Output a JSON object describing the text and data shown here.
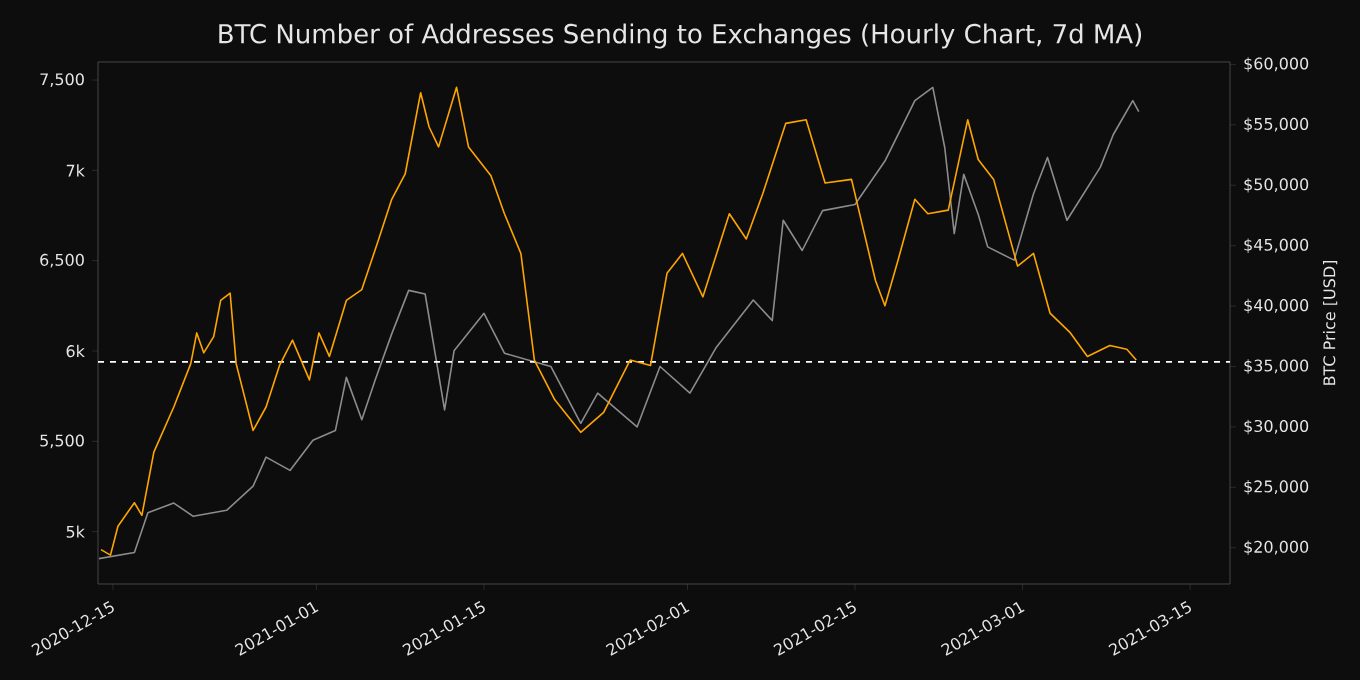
{
  "chart_data": {
    "type": "line",
    "title": "BTC Number of Addresses Sending to Exchanges (Hourly Chart, 7d MA)",
    "y2label": "BTC Price [USD]",
    "xlim": [
      "2020-12-13T18:00",
      "2021-03-18T08:00"
    ],
    "xticks": [
      "2020-12-15",
      "2021-01-01",
      "2021-01-15",
      "2021-02-01",
      "2021-02-15",
      "2021-03-01",
      "2021-03-15"
    ],
    "ylim": [
      4710,
      7600
    ],
    "yticks": [
      {
        "value": 5000,
        "label": "5k"
      },
      {
        "value": 5500,
        "label": "5,500"
      },
      {
        "value": 6000,
        "label": "6k"
      },
      {
        "value": 6500,
        "label": "6,500"
      },
      {
        "value": 7000,
        "label": "7k"
      },
      {
        "value": 7500,
        "label": "7,500"
      }
    ],
    "y2lim": [
      17000,
      60200
    ],
    "y2ticks": [
      {
        "value": 20000,
        "label": "$20,000"
      },
      {
        "value": 25000,
        "label": "$25,000"
      },
      {
        "value": 30000,
        "label": "$30,000"
      },
      {
        "value": 35000,
        "label": "$35,000"
      },
      {
        "value": 40000,
        "label": "$40,000"
      },
      {
        "value": 45000,
        "label": "$45,000"
      },
      {
        "value": 50000,
        "label": "$50,000"
      },
      {
        "value": 55000,
        "label": "$55,000"
      },
      {
        "value": 60000,
        "label": "$60,000"
      }
    ],
    "grid": false,
    "ref_lines": [
      {
        "axis": "y",
        "value": 5940,
        "color": "#ffffff",
        "line_style": "dashed"
      }
    ],
    "series": [
      {
        "color": "#ffa500",
        "x": [
          "2020-12-14T00:00",
          "2020-12-14T19:00",
          "2020-12-15T10:00",
          "2020-12-16T19:00",
          "2020-12-17T10:00",
          "2020-12-18T10:00",
          "2020-12-20T02:00",
          "2020-12-21T12:00",
          "2020-12-22T00:00",
          "2020-12-22T14:00",
          "2020-12-23T10:00",
          "2020-12-24T00:00",
          "2020-12-24T19:00",
          "2020-12-25T07:00",
          "2020-12-26T17:00",
          "2020-12-27T19:00",
          "2020-12-28T22:00",
          "2020-12-30T00:00",
          "2020-12-31T10:00",
          "2021-01-01T05:00",
          "2021-01-02T02:00",
          "2021-01-03T12:00",
          "2021-01-04T19:00",
          "2021-01-06T05:00",
          "2021-01-07T07:00",
          "2021-01-08T10:00",
          "2021-01-09T17:00",
          "2021-01-10T10:00",
          "2021-01-11T05:00",
          "2021-01-12T17:00",
          "2021-01-13T17:00",
          "2021-01-15T14:00",
          "2021-01-16T17:00",
          "2021-01-18T02:00",
          "2021-01-19T05:00",
          "2021-01-20T22:00",
          "2021-01-23T02:00",
          "2021-01-25T00:00",
          "2021-01-27T05:00",
          "2021-01-28T22:00",
          "2021-01-30T07:00",
          "2021-01-31T14:00",
          "2021-02-02T07:00",
          "2021-02-04T12:00",
          "2021-02-05T22:00",
          "2021-02-07T07:00",
          "2021-02-09T05:00",
          "2021-02-10T22:00",
          "2021-02-12T12:00",
          "2021-02-14T17:00",
          "2021-02-16T17:00",
          "2021-02-17T12:00",
          "2021-02-18T14:00",
          "2021-02-20T00:00",
          "2021-02-21T02:00",
          "2021-02-22T19:00",
          "2021-02-24T10:00",
          "2021-02-25T07:00",
          "2021-02-26T14:00",
          "2021-02-28T14:00",
          "2021-03-01T22:00",
          "2021-03-03T07:00",
          "2021-03-05T00:00",
          "2021-03-06T10:00",
          "2021-03-08T07:00",
          "2021-03-09T17:00",
          "2021-03-10T12:00"
        ],
        "values": [
          4900,
          4870,
          5030,
          5160,
          5090,
          5440,
          5690,
          5930,
          6100,
          5990,
          6080,
          6280,
          6320,
          5930,
          5560,
          5690,
          5920,
          6060,
          5840,
          6100,
          5970,
          6280,
          6340,
          6620,
          6840,
          6980,
          7430,
          7240,
          7130,
          7460,
          7130,
          6970,
          6760,
          6540,
          5950,
          5730,
          5550,
          5660,
          5950,
          5920,
          6430,
          6540,
          6300,
          6760,
          6620,
          6870,
          7260,
          7280,
          6930,
          6950,
          6390,
          6250,
          6500,
          6840,
          6760,
          6780,
          7280,
          7060,
          6950,
          6470,
          6540,
          6210,
          6100,
          5970,
          6030,
          6010,
          5950
        ]
      },
      {
        "color": "#8c8c8c",
        "axis": "y2",
        "x": [
          "2020-12-13T20:00",
          "2020-12-16T19:00",
          "2020-12-17T22:00",
          "2020-12-20T02:00",
          "2020-12-21T17:00",
          "2020-12-24T12:00",
          "2020-12-26T17:00",
          "2020-12-27T19:00",
          "2020-12-29T19:00",
          "2020-12-31T17:00",
          "2021-01-02T14:00",
          "2021-01-03T12:00",
          "2021-01-04T19:00",
          "2021-01-05T22:00",
          "2021-01-07T07:00",
          "2021-01-08T17:00",
          "2021-01-10T02:00",
          "2021-01-11T17:00",
          "2021-01-12T12:00",
          "2021-01-15T00:00",
          "2021-01-16T17:00",
          "2021-01-20T14:00",
          "2021-01-23T02:00",
          "2021-01-24T12:00",
          "2021-01-27T19:00",
          "2021-01-29T17:00",
          "2021-02-01T05:00",
          "2021-02-03T10:00",
          "2021-02-06T12:00",
          "2021-02-08T02:00",
          "2021-02-09T00:00",
          "2021-02-10T14:00",
          "2021-02-12T07:00",
          "2021-02-15T00:00",
          "2021-02-17T12:00",
          "2021-02-20T00:00",
          "2021-02-21T12:00",
          "2021-02-22T12:00",
          "2021-02-23T07:00",
          "2021-02-24T02:00",
          "2021-02-25T07:00",
          "2021-02-26T02:00",
          "2021-02-28T07:00",
          "2021-03-01T22:00",
          "2021-03-03T02:00",
          "2021-03-04T17:00",
          "2021-03-07T12:00",
          "2021-03-08T14:00",
          "2021-03-10T05:00",
          "2021-03-10T17:00"
        ],
        "values": [
          19100,
          19600,
          22900,
          23700,
          22600,
          23100,
          25100,
          27500,
          26400,
          28900,
          29700,
          34100,
          30600,
          33900,
          37700,
          41300,
          41000,
          31400,
          36300,
          39400,
          36100,
          35000,
          30300,
          32800,
          30000,
          35000,
          32800,
          36600,
          40500,
          38800,
          47100,
          44600,
          47900,
          48400,
          52000,
          57000,
          58100,
          53100,
          46000,
          50900,
          47600,
          44900,
          43800,
          49300,
          52300,
          47100,
          51500,
          54200,
          57000,
          56100
        ]
      }
    ]
  }
}
